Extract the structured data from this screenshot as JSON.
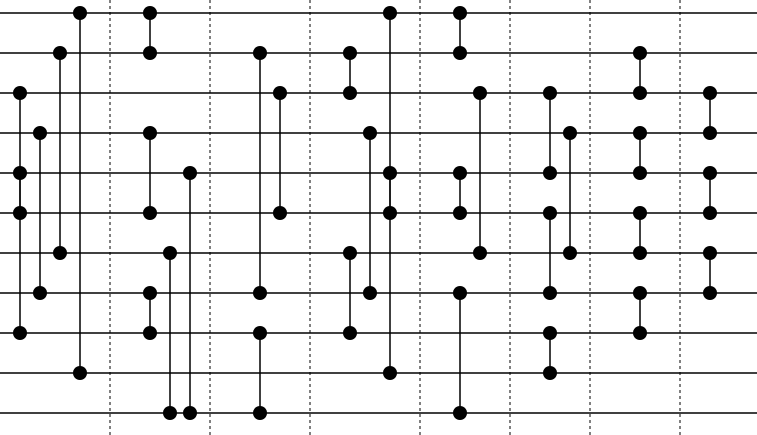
{
  "network": {
    "wire_count": 11,
    "separator_after_column": [
      0,
      1,
      2,
      3,
      4,
      5,
      6,
      7
    ],
    "columns": [
      {
        "connectors": [
          [
            0,
            9
          ],
          [
            1,
            6
          ],
          [
            2,
            8
          ],
          [
            3,
            7
          ],
          [
            4,
            5
          ]
        ]
      },
      {
        "connectors": [
          [
            0,
            1
          ],
          [
            3,
            5
          ],
          [
            6,
            10
          ],
          [
            7,
            8
          ],
          [
            4,
            10
          ]
        ]
      },
      {
        "connectors": [
          [
            1,
            7
          ],
          [
            2,
            5
          ],
          [
            8,
            10
          ]
        ]
      },
      {
        "connectors": [
          [
            1,
            2
          ],
          [
            6,
            8
          ],
          [
            3,
            7
          ]
        ]
      },
      {
        "connectors": [
          [
            0,
            9
          ],
          [
            4,
            5
          ]
        ]
      },
      {
        "connectors": [
          [
            0,
            1
          ],
          [
            4,
            5
          ],
          [
            7,
            10
          ],
          [
            2,
            6
          ]
        ]
      },
      {
        "connectors": [
          [
            2,
            4
          ],
          [
            5,
            7
          ],
          [
            8,
            9
          ],
          [
            3,
            6
          ]
        ]
      },
      {
        "connectors": [
          [
            1,
            2
          ],
          [
            3,
            4
          ],
          [
            5,
            6
          ],
          [
            7,
            8
          ]
        ]
      },
      {
        "connectors": [
          [
            2,
            3
          ],
          [
            4,
            5
          ],
          [
            6,
            7
          ]
        ]
      }
    ]
  },
  "colors": {
    "wire": "#000000",
    "connector": "#000000",
    "node": "#000000",
    "separator": "#000000"
  }
}
